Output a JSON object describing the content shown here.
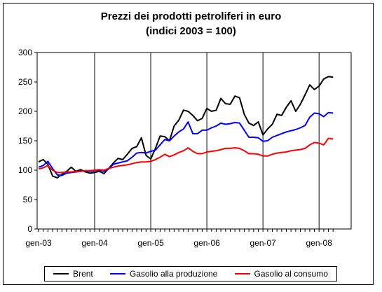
{
  "chart_data": {
    "type": "line",
    "title": "Prezzi dei prodotti petroliferi in euro",
    "subtitle": "(indici 2003 = 100)",
    "xlabel": "",
    "ylabel": "",
    "ylim": [
      0,
      300
    ],
    "yticks": [
      0,
      50,
      100,
      150,
      200,
      250,
      300
    ],
    "xtick_labels": [
      "gen-03",
      "gen-04",
      "gen-05",
      "gen-06",
      "gen-07",
      "gen-08"
    ],
    "x_start": "gen-03",
    "x_months": [
      "gen-03",
      "feb-03",
      "mar-03",
      "apr-03",
      "mag-03",
      "giu-03",
      "lug-03",
      "ago-03",
      "set-03",
      "ott-03",
      "nov-03",
      "dic-03",
      "gen-04",
      "feb-04",
      "mar-04",
      "apr-04",
      "mag-04",
      "giu-04",
      "lug-04",
      "ago-04",
      "set-04",
      "ott-04",
      "nov-04",
      "dic-04",
      "gen-05",
      "feb-05",
      "mar-05",
      "apr-05",
      "mag-05",
      "giu-05",
      "lug-05",
      "ago-05",
      "set-05",
      "ott-05",
      "nov-05",
      "dic-05",
      "gen-06",
      "feb-06",
      "mar-06",
      "apr-06",
      "mag-06",
      "giu-06",
      "lug-06",
      "ago-06",
      "set-06",
      "ott-06",
      "nov-06",
      "dic-06",
      "gen-07",
      "feb-07",
      "mar-07",
      "apr-07",
      "mag-07",
      "giu-07",
      "lug-07",
      "ago-07",
      "set-07",
      "ott-07",
      "nov-07",
      "dic-07",
      "gen-08",
      "feb-08",
      "mar-08",
      "apr-08"
    ],
    "vertical_gridlines_at": [
      "gen-04",
      "gen-05",
      "gen-06",
      "gen-07",
      "gen-08"
    ],
    "grid": false,
    "legend_position": "bottom",
    "series": [
      {
        "name": "Brent",
        "color": "#000000",
        "values": [
          114,
          118,
          110,
          90,
          87,
          93,
          98,
          105,
          98,
          101,
          97,
          95,
          96,
          98,
          94,
          103,
          112,
          120,
          118,
          127,
          137,
          140,
          155,
          125,
          119,
          137,
          158,
          157,
          150,
          175,
          185,
          202,
          200,
          193,
          184,
          188,
          205,
          200,
          202,
          222,
          213,
          212,
          226,
          223,
          195,
          180,
          176,
          182,
          160,
          170,
          178,
          195,
          193,
          207,
          218,
          200,
          212,
          228,
          245,
          237,
          243,
          255,
          259,
          258
        ]
      },
      {
        "name": "Gasolio alla produzione",
        "color": "#0000ff",
        "values": [
          105,
          108,
          115,
          103,
          92,
          91,
          95,
          96,
          97,
          98,
          99,
          98,
          99,
          100,
          98,
          102,
          110,
          112,
          114,
          116,
          122,
          129,
          130,
          129,
          132,
          134,
          143,
          152,
          150,
          158,
          165,
          170,
          182,
          162,
          162,
          168,
          168,
          172,
          175,
          180,
          178,
          179,
          181,
          180,
          168,
          156,
          156,
          155,
          149,
          150,
          156,
          159,
          162,
          165,
          167,
          169,
          172,
          176,
          190,
          197,
          196,
          191,
          198,
          197
        ]
      },
      {
        "name": "Gasolio al consumo",
        "color": "#ff0000",
        "values": [
          102,
          104,
          108,
          100,
          96,
          96,
          97,
          97,
          98,
          98,
          99,
          99,
          100,
          101,
          100,
          103,
          105,
          107,
          108,
          109,
          111,
          113,
          114,
          114,
          115,
          118,
          122,
          127,
          123,
          126,
          130,
          133,
          138,
          132,
          128,
          128,
          131,
          132,
          133,
          135,
          137,
          137,
          138,
          137,
          133,
          128,
          128,
          127,
          124,
          124,
          127,
          129,
          130,
          131,
          133,
          134,
          135,
          137,
          143,
          147,
          146,
          143,
          154,
          153
        ]
      }
    ]
  }
}
